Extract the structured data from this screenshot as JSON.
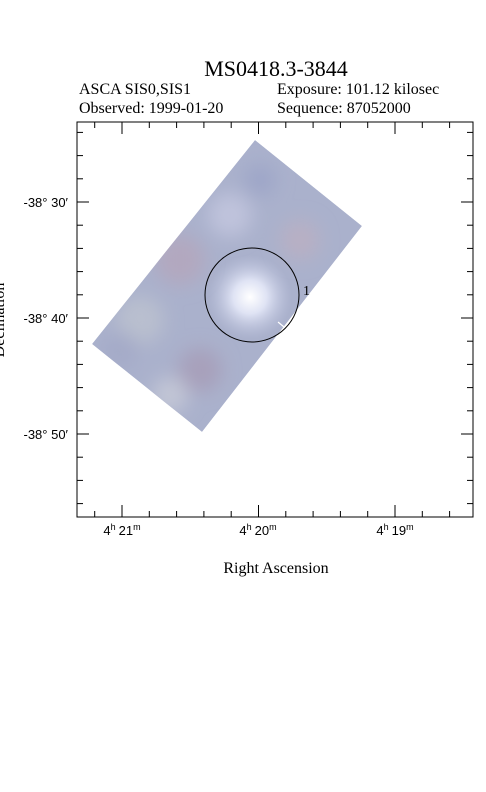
{
  "header": {
    "title": "MS0418.3-3844",
    "instrument": "ASCA SIS0,SIS1",
    "exposure": "Exposure: 101.12 kilosec",
    "observed": "Observed: 1999-01-20",
    "sequence": "Sequence: 87052000"
  },
  "plot": {
    "x_label": "Right Ascension",
    "y_label": "Declination",
    "y_tick_labels": [
      "-38° 30′",
      "-38° 40′",
      "-38° 50′"
    ],
    "x_tick_labels": [
      [
        "4",
        "h",
        "21",
        "m"
      ],
      [
        "4",
        "h",
        "20",
        "m"
      ],
      [
        "4",
        "h",
        "19",
        "m"
      ]
    ],
    "source_label": "1"
  }
}
